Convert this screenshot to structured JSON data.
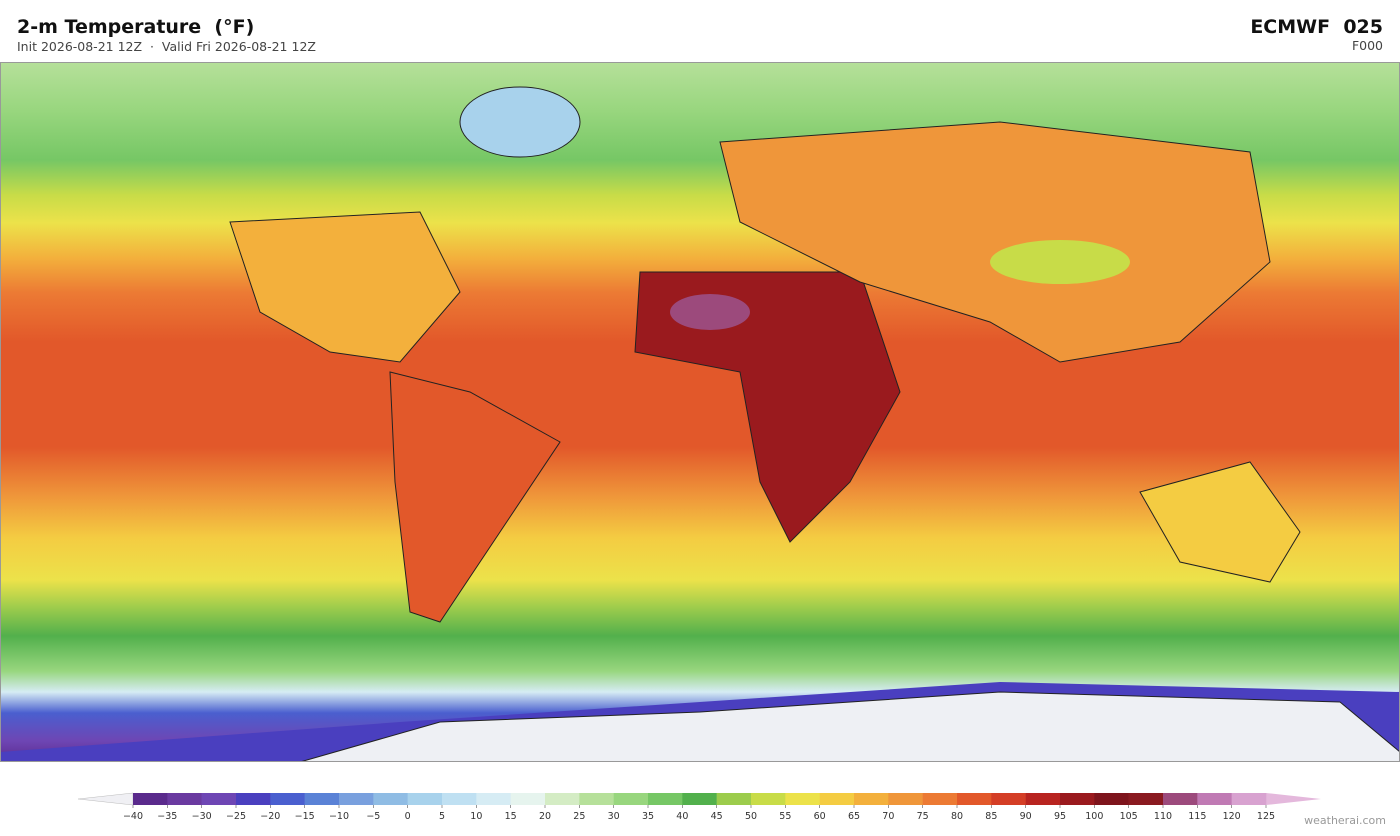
{
  "header": {
    "title": "2-m Temperature  (°F)",
    "subtitle": "Init 2026-08-21 12Z  ·  Valid Fri 2026-08-21 12Z",
    "model": "ECMWF  025",
    "forecast_hour": "F000"
  },
  "colorbar": {
    "ticks": [
      {
        "value": -40,
        "label": "−40"
      },
      {
        "value": -35,
        "label": "−35"
      },
      {
        "value": -30,
        "label": "−30"
      },
      {
        "value": -25,
        "label": "−25"
      },
      {
        "value": -20,
        "label": "−20"
      },
      {
        "value": -15,
        "label": "−15"
      },
      {
        "value": -10,
        "label": "−10"
      },
      {
        "value": -5,
        "label": "−5"
      },
      0,
      5,
      10,
      15,
      20,
      25,
      30,
      35,
      40,
      45,
      50,
      55,
      60,
      65,
      70,
      75,
      80,
      85,
      90,
      95,
      100,
      105,
      110,
      115,
      120,
      125
    ],
    "colors": [
      "#5a2a8c",
      "#6a3aa0",
      "#6e46b4",
      "#4a3fbf",
      "#4a5fcf",
      "#5a82d6",
      "#79a0de",
      "#8fbce4",
      "#a8d2ec",
      "#bfe0f2",
      "#d6ecf4",
      "#e6f4ee",
      "#d4ecc4",
      "#b6e09a",
      "#98d67e",
      "#76c765",
      "#52b04c",
      "#9ccc4c",
      "#c8dc48",
      "#ece24a",
      "#f4cc42",
      "#f3b03c",
      "#ef963a",
      "#ec7a34",
      "#e2582a",
      "#d43e26",
      "#b82420",
      "#9a1a1e",
      "#7e141c",
      "#8a1a20",
      "#9c4a7c",
      "#c07ab4",
      "#d8a2d0"
    ],
    "under_color": "#f0f0f4",
    "over_color": "#e4b8dc"
  },
  "watermark": "weatherai.com"
}
